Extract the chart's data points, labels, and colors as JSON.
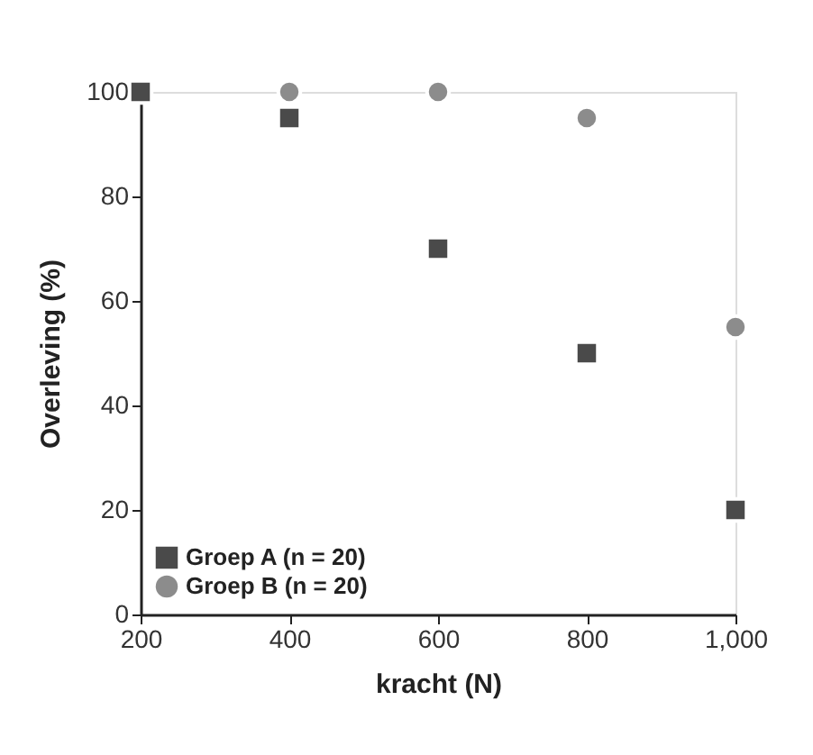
{
  "chart_data": {
    "type": "scatter",
    "xlabel": "kracht (N)",
    "ylabel": "Overleving (%)",
    "x": [
      200,
      400,
      600,
      800,
      1000
    ],
    "series": [
      {
        "name": "Groep A (n = 20)",
        "color": "#4a4a4a",
        "marker": "square",
        "values": [
          100,
          95,
          70,
          50,
          20
        ]
      },
      {
        "name": "Groep B (n = 20)",
        "color": "#8c8c8c",
        "marker": "circle",
        "values": [
          null,
          100,
          100,
          95,
          55
        ]
      }
    ],
    "xlim": [
      200,
      1000
    ],
    "xticks": [
      200,
      400,
      600,
      800,
      {
        "value": 1000,
        "label": "1,000"
      }
    ],
    "ylim": [
      0,
      100
    ],
    "yticks": [
      0,
      20,
      40,
      60,
      80,
      100
    ],
    "grid": false,
    "legend": "bottom left"
  }
}
